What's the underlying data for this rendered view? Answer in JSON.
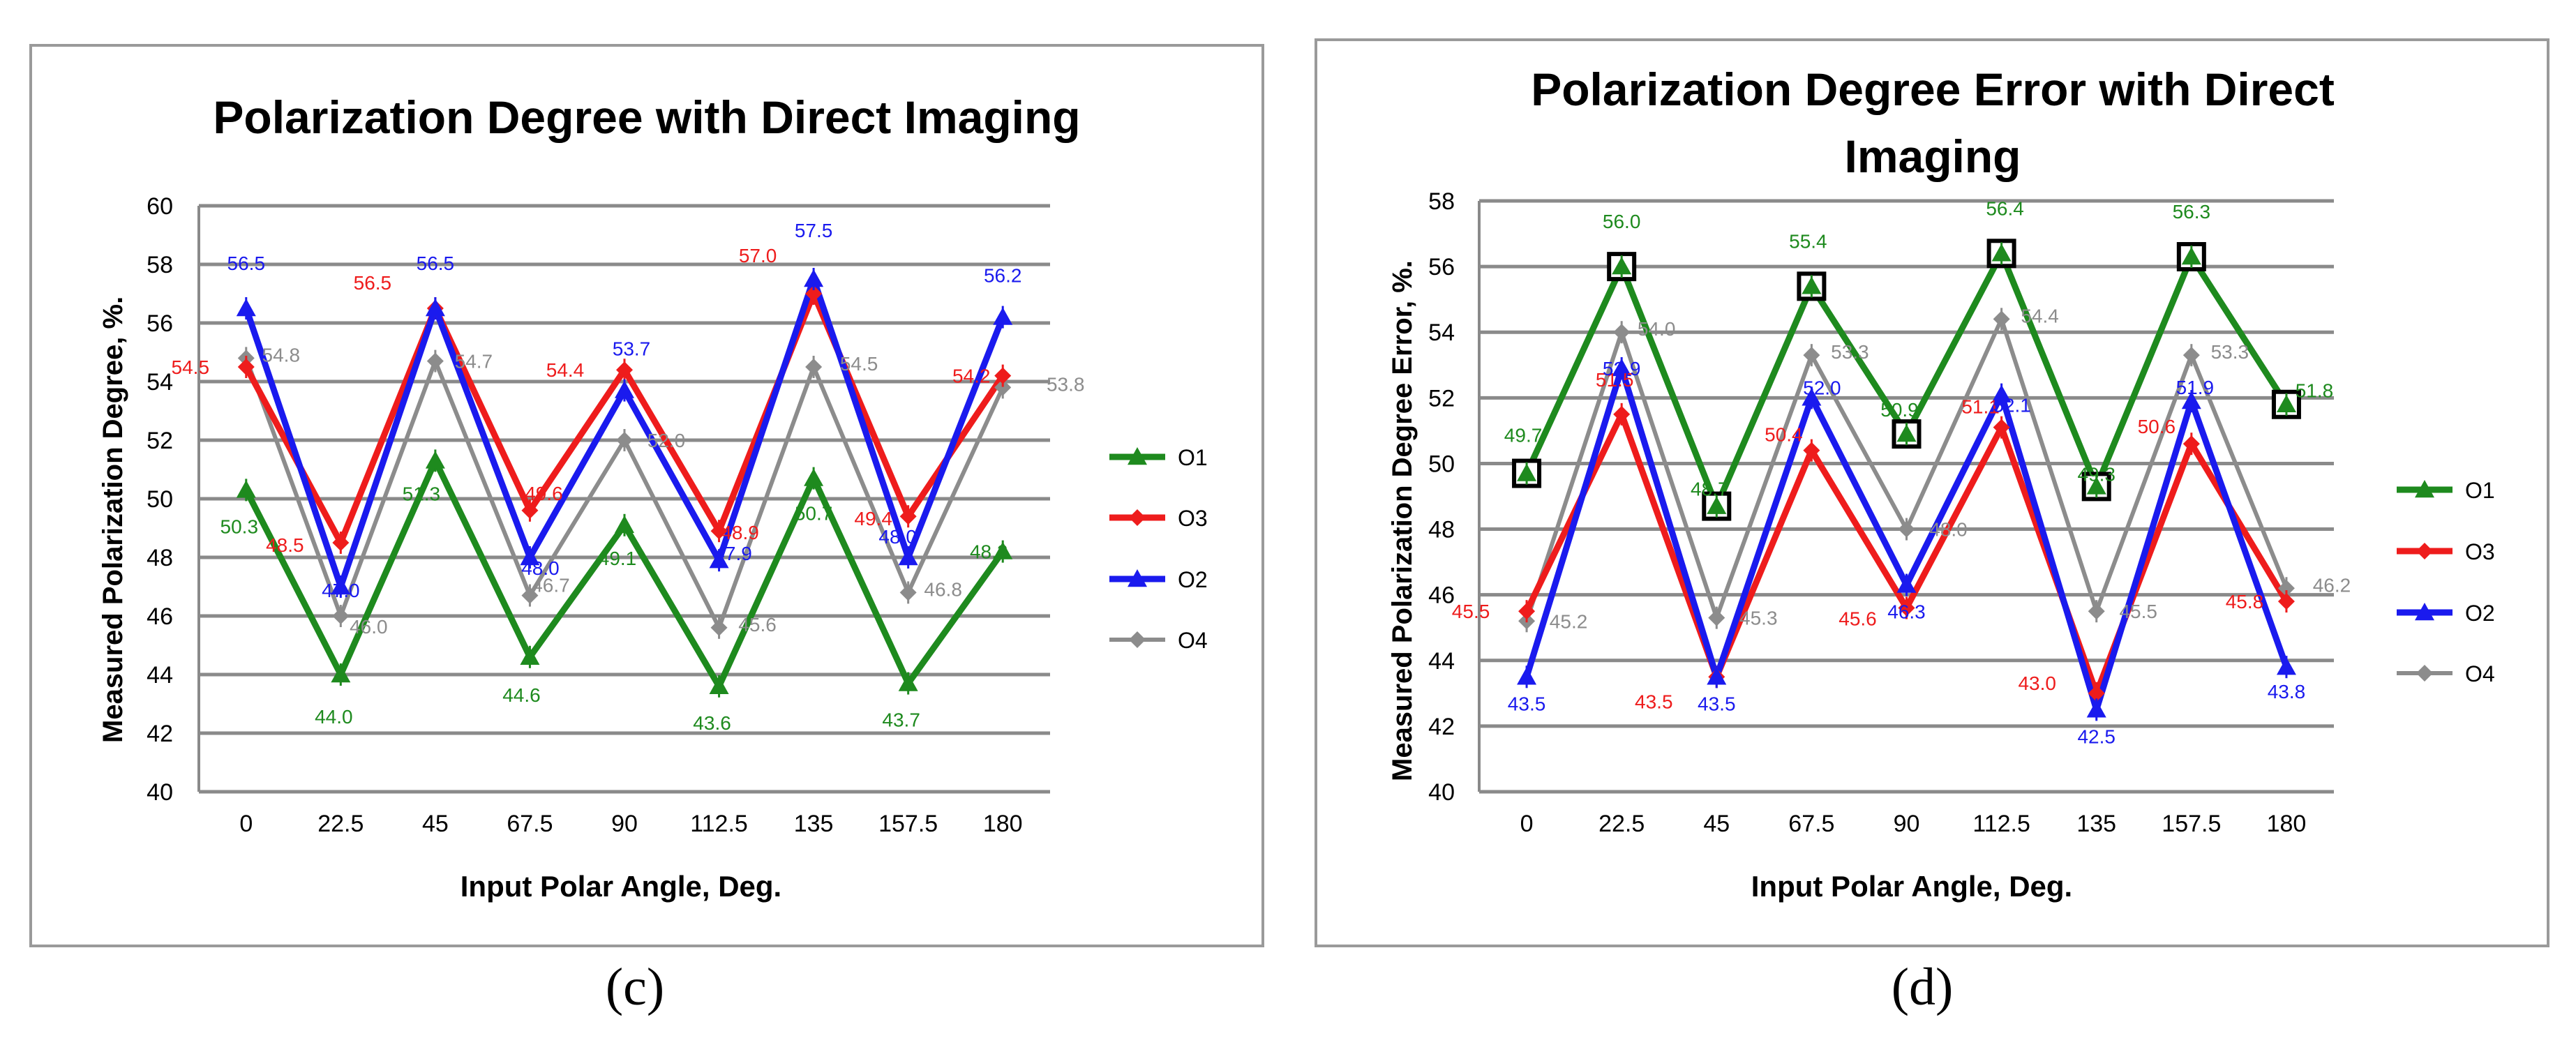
{
  "chart_data": [
    {
      "id": "c",
      "type": "line",
      "panel_label": "(c)",
      "title": "Polarization Degree with Direct Imaging",
      "xlabel": "Input Polar Angle, Deg.",
      "ylabel": "Measured Polarization Degree, %.",
      "categories": [
        "0",
        "22.5",
        "45",
        "67.5",
        "90",
        "112.5",
        "135",
        "157.5",
        "180"
      ],
      "ylim": [
        40,
        60
      ],
      "yticks": [
        40,
        42,
        44,
        46,
        48,
        50,
        52,
        54,
        56,
        58,
        60
      ],
      "ytick_labels": [
        "40",
        "42",
        "44",
        "46",
        "48",
        "50",
        "52",
        "54",
        "56",
        "58",
        "60"
      ],
      "grid": true,
      "legend_position": "right",
      "series": [
        {
          "name": "O1",
          "color": "#1e8a1e",
          "marker": "triangle",
          "values": [
            50.3,
            44.0,
            51.3,
            44.6,
            49.1,
            43.6,
            50.7,
            43.7,
            48.2
          ],
          "labels": [
            "50.3",
            "44.0",
            "51.3",
            "44.6",
            "49.1",
            "43.6",
            "50.7",
            "43.7",
            "48.2"
          ]
        },
        {
          "name": "O3",
          "color": "#ee1c1c",
          "marker": "diamond",
          "values": [
            54.5,
            48.5,
            56.5,
            49.6,
            54.4,
            48.9,
            57.0,
            49.4,
            54.2
          ],
          "labels": [
            "54.5",
            "48.5",
            "56.5",
            "49.6",
            "54.4",
            "48.9",
            "57.0",
            "49.4",
            "54.2"
          ]
        },
        {
          "name": "O2",
          "color": "#1a1aee",
          "marker": "triangle",
          "values": [
            56.5,
            47.0,
            56.5,
            48.0,
            53.7,
            47.9,
            57.5,
            48.0,
            56.2
          ],
          "labels": [
            "56.5",
            "47.0",
            "56.5",
            "48.0",
            "53.7",
            "47.9",
            "57.5",
            "48.0",
            "56.2"
          ]
        },
        {
          "name": "O4",
          "color": "#8c8c8c",
          "marker": "diamond",
          "values": [
            54.8,
            46.0,
            54.7,
            46.7,
            52.0,
            45.6,
            54.5,
            46.8,
            53.8
          ],
          "labels": [
            "54.8",
            "46.0",
            "54.7",
            "46.7",
            "52.0",
            "45.6",
            "54.5",
            "46.8",
            "53.8"
          ]
        }
      ]
    },
    {
      "id": "d",
      "type": "line",
      "panel_label": "(d)",
      "title": "Polarization Degree Error with Direct Imaging",
      "xlabel": "Input Polar Angle, Deg.",
      "ylabel": "Measured Polarization Degree Error, %.",
      "categories": [
        "0",
        "22.5",
        "45",
        "67.5",
        "90",
        "112.5",
        "135",
        "157.5",
        "180"
      ],
      "ylim": [
        40,
        58
      ],
      "yticks": [
        40,
        42,
        44,
        46,
        48,
        50,
        52,
        54,
        56,
        58
      ],
      "ytick_labels": [
        "40",
        "42",
        "44",
        "46",
        "48",
        "50",
        "52",
        "54",
        "56",
        "58"
      ],
      "grid": true,
      "legend_position": "right",
      "series": [
        {
          "name": "O1",
          "color": "#1e8a1e",
          "marker": "triangle",
          "values": [
            49.7,
            56.0,
            48.7,
            55.4,
            50.9,
            56.4,
            49.3,
            56.3,
            51.8
          ],
          "labels": [
            "49.7",
            "56.0",
            "48.7",
            "55.4",
            "50.9",
            "56.4",
            "49.3",
            "56.3",
            "51.8"
          ]
        },
        {
          "name": "O3",
          "color": "#ee1c1c",
          "marker": "diamond",
          "values": [
            45.5,
            51.5,
            43.5,
            50.4,
            45.6,
            51.1,
            43.0,
            50.6,
            45.8
          ],
          "labels": [
            "45.5",
            "51.5",
            "43.5",
            "50.4",
            "45.6",
            "51.1",
            "43.0",
            "50.6",
            "45.8"
          ]
        },
        {
          "name": "O2",
          "color": "#1a1aee",
          "marker": "triangle",
          "values": [
            43.5,
            52.9,
            43.5,
            52.0,
            46.3,
            52.1,
            42.5,
            51.9,
            43.8
          ],
          "labels": [
            "43.5",
            "52.9",
            "43.5",
            "52.0",
            "46.3",
            "52.1",
            "42.5",
            "51.9",
            "43.8"
          ]
        },
        {
          "name": "O4",
          "color": "#8c8c8c",
          "marker": "diamond",
          "values": [
            45.2,
            54.0,
            45.3,
            53.3,
            48.0,
            54.4,
            45.5,
            53.3,
            46.2
          ],
          "labels": [
            "45.2",
            "54.0",
            "45.3",
            "53.3",
            "48.0",
            "54.4",
            "45.5",
            "53.3",
            "46.2"
          ]
        }
      ]
    }
  ]
}
